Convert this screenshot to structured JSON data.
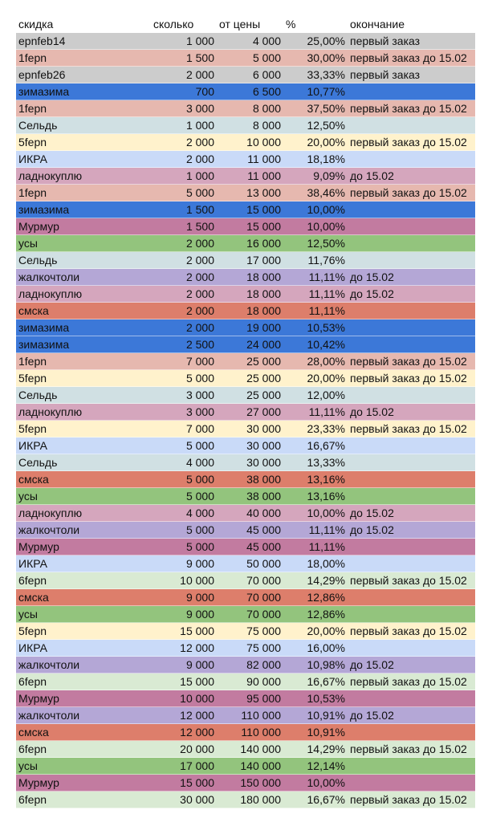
{
  "table": {
    "header": [
      "скидка",
      "сколько",
      "от цены",
      "%",
      "окончание"
    ],
    "rows": [
      {
        "color": "#cccccc",
        "cells": [
          "epnfeb14",
          "1 000",
          "4 000",
          "25,00%",
          "первый заказ"
        ]
      },
      {
        "color": "#e6b8af",
        "cells": [
          "1fepn",
          "1 500",
          "5 000",
          "30,00%",
          "первый заказ до 15.02"
        ]
      },
      {
        "color": "#cccccc",
        "cells": [
          "epnfeb26",
          "2 000",
          "6 000",
          "33,33%",
          "первый заказ"
        ]
      },
      {
        "color": "#3c78d8",
        "cells": [
          "зимазима",
          "700",
          "6 500",
          "10,77%",
          ""
        ]
      },
      {
        "color": "#e6b8af",
        "cells": [
          "1fepn",
          "3 000",
          "8 000",
          "37,50%",
          "первый заказ до 15.02"
        ]
      },
      {
        "color": "#d0e0e3",
        "cells": [
          "Сельдь",
          "1 000",
          "8 000",
          "12,50%",
          ""
        ]
      },
      {
        "color": "#fff2cc",
        "cells": [
          "5fepn",
          "2 000",
          "10 000",
          "20,00%",
          "первый заказ до 15.02"
        ]
      },
      {
        "color": "#c9daf8",
        "cells": [
          "ИКРА",
          "2 000",
          "11 000",
          "18,18%",
          ""
        ]
      },
      {
        "color": "#d5a6bd",
        "cells": [
          "ладнокуплю",
          "1 000",
          "11 000",
          "9,09%",
          "до 15.02"
        ]
      },
      {
        "color": "#e6b8af",
        "cells": [
          "1fepn",
          "5 000",
          "13 000",
          "38,46%",
          "первый заказ до 15.02"
        ]
      },
      {
        "color": "#3c78d8",
        "cells": [
          "зимазима",
          "1 500",
          "15 000",
          "10,00%",
          ""
        ]
      },
      {
        "color": "#c27ba0",
        "cells": [
          "Мурмур",
          "1 500",
          "15 000",
          "10,00%",
          ""
        ]
      },
      {
        "color": "#93c47d",
        "cells": [
          "усы",
          "2 000",
          "16 000",
          "12,50%",
          ""
        ]
      },
      {
        "color": "#d0e0e3",
        "cells": [
          "Сельдь",
          "2 000",
          "17 000",
          "11,76%",
          ""
        ]
      },
      {
        "color": "#b4a7d6",
        "cells": [
          "жалкочтоли",
          "2 000",
          "18 000",
          "11,11%",
          "до 15.02"
        ]
      },
      {
        "color": "#d5a6bd",
        "cells": [
          "ладнокуплю",
          "2 000",
          "18 000",
          "11,11%",
          "до 15.02"
        ]
      },
      {
        "color": "#dd7e6b",
        "cells": [
          "смска",
          "2 000",
          "18 000",
          "11,11%",
          ""
        ]
      },
      {
        "color": "#3c78d8",
        "cells": [
          "зимазима",
          "2 000",
          "19 000",
          "10,53%",
          ""
        ]
      },
      {
        "color": "#3c78d8",
        "cells": [
          "зимазима",
          "2 500",
          "24 000",
          "10,42%",
          ""
        ]
      },
      {
        "color": "#e6b8af",
        "cells": [
          "1fepn",
          "7 000",
          "25 000",
          "28,00%",
          "первый заказ до 15.02"
        ]
      },
      {
        "color": "#fff2cc",
        "cells": [
          "5fepn",
          "5 000",
          "25 000",
          "20,00%",
          "первый заказ до 15.02"
        ]
      },
      {
        "color": "#d0e0e3",
        "cells": [
          "Сельдь",
          "3 000",
          "25 000",
          "12,00%",
          ""
        ]
      },
      {
        "color": "#d5a6bd",
        "cells": [
          "ладнокуплю",
          "3 000",
          "27 000",
          "11,11%",
          "до 15.02"
        ]
      },
      {
        "color": "#fff2cc",
        "cells": [
          "5fepn",
          "7 000",
          "30 000",
          "23,33%",
          "первый заказ до 15.02"
        ]
      },
      {
        "color": "#c9daf8",
        "cells": [
          "ИКРА",
          "5 000",
          "30 000",
          "16,67%",
          ""
        ]
      },
      {
        "color": "#d0e0e3",
        "cells": [
          "Сельдь",
          "4 000",
          "30 000",
          "13,33%",
          ""
        ]
      },
      {
        "color": "#dd7e6b",
        "cells": [
          "смска",
          "5 000",
          "38 000",
          "13,16%",
          ""
        ]
      },
      {
        "color": "#93c47d",
        "cells": [
          "усы",
          "5 000",
          "38 000",
          "13,16%",
          ""
        ]
      },
      {
        "color": "#d5a6bd",
        "cells": [
          "ладнокуплю",
          "4 000",
          "40 000",
          "10,00%",
          "до 15.02"
        ]
      },
      {
        "color": "#b4a7d6",
        "cells": [
          "жалкочтоли",
          "5 000",
          "45 000",
          "11,11%",
          "до 15.02"
        ]
      },
      {
        "color": "#c27ba0",
        "cells": [
          "Мурмур",
          "5 000",
          "45 000",
          "11,11%",
          ""
        ]
      },
      {
        "color": "#c9daf8",
        "cells": [
          "ИКРА",
          "9 000",
          "50 000",
          "18,00%",
          ""
        ]
      },
      {
        "color": "#d9ead3",
        "cells": [
          "6fepn",
          "10 000",
          "70 000",
          "14,29%",
          "первый заказ до 15.02"
        ]
      },
      {
        "color": "#dd7e6b",
        "cells": [
          "смска",
          "9 000",
          "70 000",
          "12,86%",
          ""
        ]
      },
      {
        "color": "#93c47d",
        "cells": [
          "усы",
          "9 000",
          "70 000",
          "12,86%",
          ""
        ]
      },
      {
        "color": "#fff2cc",
        "cells": [
          "5fepn",
          "15 000",
          "75 000",
          "20,00%",
          "первый заказ до 15.02"
        ]
      },
      {
        "color": "#c9daf8",
        "cells": [
          "ИКРА",
          "12 000",
          "75 000",
          "16,00%",
          ""
        ]
      },
      {
        "color": "#b4a7d6",
        "cells": [
          "жалкочтоли",
          "9 000",
          "82 000",
          "10,98%",
          "до 15.02"
        ]
      },
      {
        "color": "#d9ead3",
        "cells": [
          "6fepn",
          "15 000",
          "90 000",
          "16,67%",
          "первый заказ до 15.02"
        ]
      },
      {
        "color": "#c27ba0",
        "cells": [
          "Мурмур",
          "10 000",
          "95 000",
          "10,53%",
          ""
        ]
      },
      {
        "color": "#b4a7d6",
        "cells": [
          "жалкочтоли",
          "12 000",
          "110 000",
          "10,91%",
          "до 15.02"
        ]
      },
      {
        "color": "#dd7e6b",
        "cells": [
          "смска",
          "12 000",
          "110 000",
          "10,91%",
          ""
        ]
      },
      {
        "color": "#d9ead3",
        "cells": [
          "6fepn",
          "20 000",
          "140 000",
          "14,29%",
          "первый заказ до 15.02"
        ]
      },
      {
        "color": "#93c47d",
        "cells": [
          "усы",
          "17 000",
          "140 000",
          "12,14%",
          ""
        ]
      },
      {
        "color": "#c27ba0",
        "cells": [
          "Мурмур",
          "15 000",
          "150 000",
          "10,00%",
          ""
        ]
      },
      {
        "color": "#d9ead3",
        "cells": [
          "6fepn",
          "30 000",
          "180 000",
          "16,67%",
          "первый заказ до 15.02"
        ]
      }
    ]
  }
}
